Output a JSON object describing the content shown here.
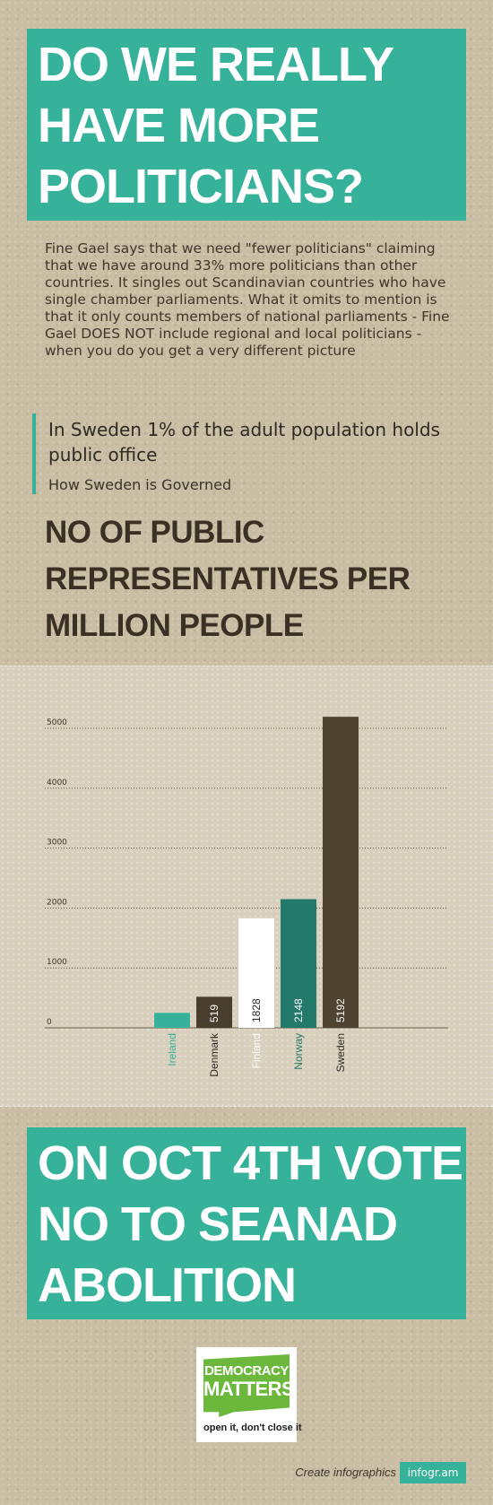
{
  "title_lines": [
    "DO WE REALLY",
    "HAVE MORE",
    "POLITICIANS?"
  ],
  "intro": "Fine Gael says that we need \"fewer politicians\" claiming that we have around 33% more politicians than other countries. It singles out Scandinavian countries who have single chamber parliaments. What it omits to mention is that it only counts members of national parliaments - Fine Gael DOES NOT include regional and local politicians - when you do you get a very different picture",
  "quote": {
    "text": "In Sweden 1% of the adult population holds public office",
    "source": "How Sweden is Governed"
  },
  "chart_heading_lines": [
    "NO OF PUBLIC",
    "REPRESENTATIVES PER",
    "MILLION PEOPLE"
  ],
  "chart_data": {
    "type": "bar",
    "title": "NO OF PUBLIC REPRESENTATIVES PER MILLION PEOPLE",
    "categories": [
      "Ireland",
      "Denmark",
      "Finland",
      "Norway",
      "Sweden"
    ],
    "values": [
      250,
      519,
      1828,
      2148,
      5192
    ],
    "value_labels": [
      "",
      "519",
      "1828",
      "2148",
      "5192"
    ],
    "ylim": [
      0,
      5000
    ],
    "yticks": [
      "0",
      "1000",
      "2000",
      "3000",
      "4000",
      "5000"
    ],
    "grid": true,
    "bar_colors": [
      "#36b29a",
      "#4a3f2f",
      "#ffffff",
      "#23796a",
      "#4e4330"
    ],
    "label_colors": [
      "#36b29a",
      "#2d2a24",
      "#ffffff",
      "#23796a",
      "#2d2a24"
    ],
    "value_label_colors": [
      "",
      "#ffffff",
      "#2d2a24",
      "#ffffff",
      "#ffffff"
    ]
  },
  "cta_lines": [
    "ON OCT 4TH VOTE",
    "NO TO SEANAD",
    "ABOLITION"
  ],
  "logo": {
    "line1": "DEMOCRACY",
    "line2": "MATTERS",
    "tagline": "open it, don't close it"
  },
  "credit": {
    "text": "Create infographics",
    "badge": "infogr.am"
  },
  "colors": {
    "accent": "#36b29a",
    "dark_brown": "#4e4330",
    "logo_green": "#6cb83c"
  }
}
